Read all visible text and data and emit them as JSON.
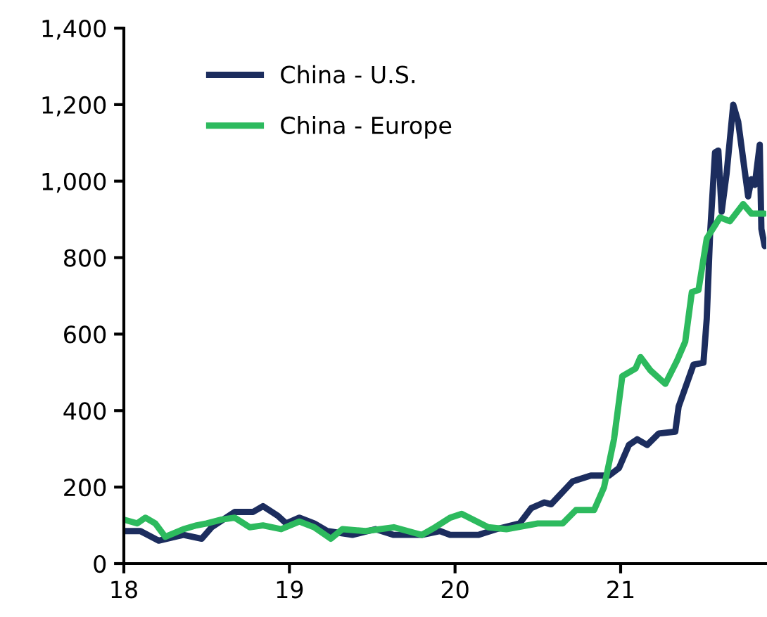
{
  "chart_data": {
    "type": "line",
    "xlim": [
      18,
      21.88
    ],
    "xticks": [
      18,
      19,
      20,
      21
    ],
    "ylim": [
      0,
      1400
    ],
    "yticks": [
      0,
      {
        "value": 200,
        "label": "200"
      },
      {
        "value": 400,
        "label": "400"
      },
      {
        "value": 600,
        "label": "600"
      },
      {
        "value": 800,
        "label": "800"
      },
      {
        "value": 1000,
        "label": "1,000"
      },
      {
        "value": 1200,
        "label": "1,200"
      },
      {
        "value": 1400,
        "label": "1,400"
      }
    ],
    "grid": false,
    "legend": "top left",
    "marker": "none",
    "line_style": "solid",
    "series": [
      {
        "name": "China - U.S.",
        "color": "#1c2d5e",
        "x": [
          18.0,
          18.1,
          18.21,
          18.36,
          18.47,
          18.53,
          18.67,
          18.78,
          18.84,
          18.93,
          18.98,
          19.06,
          19.15,
          19.23,
          19.38,
          19.52,
          19.63,
          19.8,
          19.91,
          19.97,
          20.14,
          20.25,
          20.39,
          20.46,
          20.54,
          20.58,
          20.71,
          20.82,
          20.93,
          20.99,
          21.05,
          21.1,
          21.16,
          21.23,
          21.33,
          21.35,
          21.44,
          21.5,
          21.52,
          21.54,
          21.57,
          21.59,
          21.61,
          21.64,
          21.68,
          21.71,
          21.77,
          21.79,
          21.81,
          21.84,
          21.85,
          21.87
        ],
        "values": [
          85,
          85,
          60,
          75,
          65,
          95,
          135,
          135,
          150,
          125,
          105,
          120,
          105,
          85,
          75,
          90,
          75,
          75,
          85,
          75,
          75,
          90,
          105,
          145,
          160,
          155,
          215,
          230,
          230,
          250,
          310,
          325,
          310,
          340,
          345,
          410,
          520,
          525,
          640,
          860,
          1075,
          1080,
          920,
          1020,
          1200,
          1155,
          960,
          1005,
          990,
          1095,
          875,
          830
        ]
      },
      {
        "name": "China - Europe",
        "color": "#2dba5e",
        "x": [
          18.0,
          18.08,
          18.13,
          18.19,
          18.25,
          18.36,
          18.44,
          18.5,
          18.59,
          18.67,
          18.76,
          18.84,
          18.95,
          19.06,
          19.15,
          19.25,
          19.32,
          19.46,
          19.63,
          19.8,
          19.88,
          19.97,
          20.04,
          20.2,
          20.31,
          20.5,
          20.65,
          20.73,
          20.84,
          20.9,
          20.96,
          21.01,
          21.09,
          21.12,
          21.18,
          21.27,
          21.34,
          21.39,
          21.43,
          21.47,
          21.52,
          21.6,
          21.66,
          21.74,
          21.79,
          21.87
        ],
        "values": [
          115,
          105,
          120,
          105,
          70,
          90,
          100,
          105,
          115,
          120,
          95,
          100,
          90,
          110,
          95,
          65,
          90,
          85,
          95,
          75,
          95,
          120,
          130,
          95,
          90,
          105,
          105,
          140,
          140,
          200,
          325,
          490,
          510,
          540,
          505,
          470,
          530,
          580,
          710,
          715,
          850,
          905,
          895,
          940,
          915,
          915
        ]
      }
    ]
  }
}
